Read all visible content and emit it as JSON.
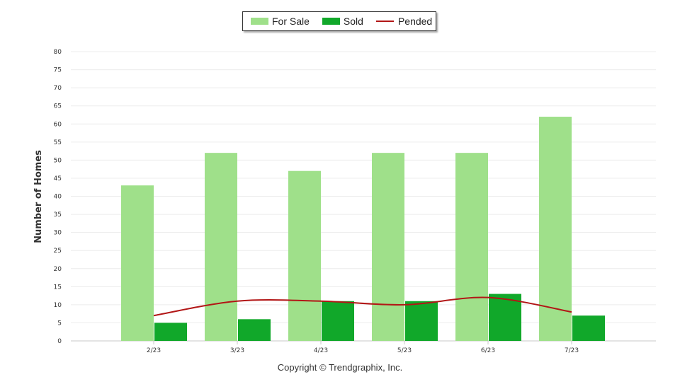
{
  "chart_data": {
    "type": "bar",
    "categories": [
      "2/23",
      "3/23",
      "4/23",
      "5/23",
      "6/23",
      "7/23"
    ],
    "series": [
      {
        "name": "For Sale",
        "kind": "bar",
        "color": "#9fe08a",
        "values": [
          43,
          52,
          47,
          52,
          52,
          62
        ]
      },
      {
        "name": "Sold",
        "kind": "bar",
        "color": "#11a82a",
        "values": [
          5,
          6,
          11,
          11,
          13,
          7
        ]
      },
      {
        "name": "Pended",
        "kind": "line",
        "color": "#b21616",
        "values": [
          7,
          11,
          11,
          10,
          12,
          8
        ]
      }
    ],
    "ylabel": "Number of Homes",
    "ylim": [
      0,
      80
    ],
    "yticks": [
      0,
      5,
      10,
      15,
      20,
      25,
      30,
      35,
      40,
      45,
      50,
      55,
      60,
      65,
      70,
      75,
      80
    ],
    "grid": true,
    "legend_position": "top-center"
  },
  "footer": {
    "text": "Copyright © Trendgraphix, Inc."
  }
}
